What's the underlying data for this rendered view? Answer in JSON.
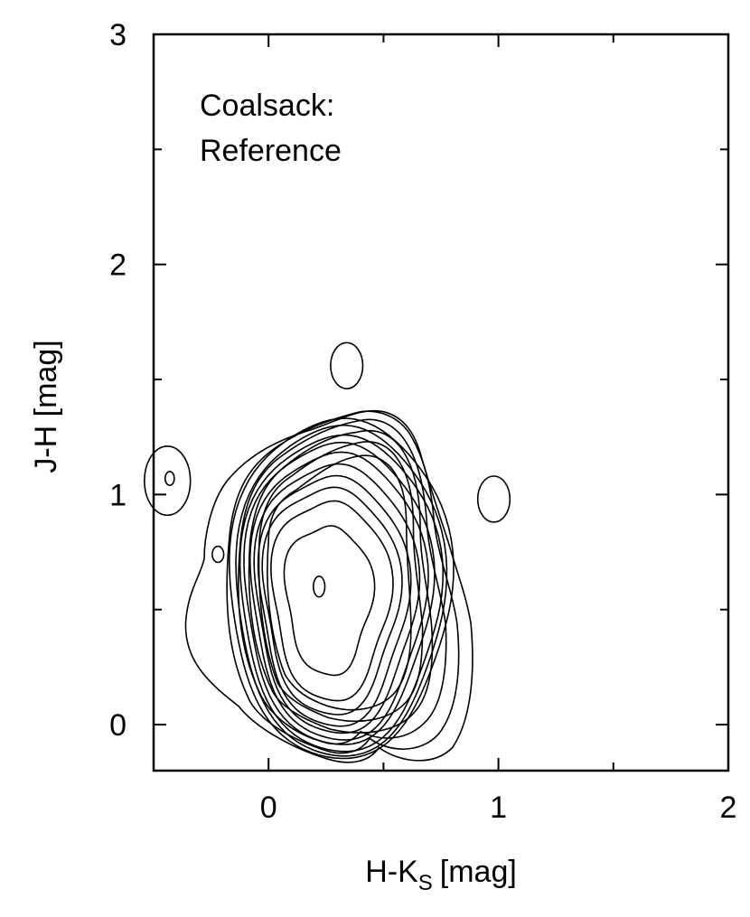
{
  "chart_data": {
    "type": "contour",
    "annotation": [
      "Coalsack:",
      "Reference"
    ],
    "xlabel": "H-K",
    "xlabel_subscript": "S",
    "xlabel_unit": "[mag]",
    "ylabel": "J-H [mag]",
    "xlim": [
      -0.5,
      2.0
    ],
    "ylim": [
      -0.2,
      3.0
    ],
    "x_ticks": [
      0,
      1,
      2
    ],
    "x_tick_labels": [
      "0",
      "1",
      "2"
    ],
    "x_minor_ticks": [
      -0.5,
      0.5,
      1.5
    ],
    "y_ticks": [
      0,
      1,
      2,
      3
    ],
    "y_tick_labels": [
      "0",
      "1",
      "2",
      "3"
    ],
    "y_minor_ticks": [
      0.5,
      1.5,
      2.5
    ],
    "grid": false,
    "line_color": "#000000",
    "peak": {
      "x": 0.22,
      "y": 0.6
    },
    "main_contours": [
      {
        "cx": 0.26,
        "cy": 0.55,
        "rx": 0.19,
        "ry": 0.33,
        "tilt": 18,
        "wobble": 0.14,
        "yshift": 0.0
      },
      {
        "cx": 0.27,
        "cy": 0.55,
        "rx": 0.26,
        "ry": 0.44,
        "tilt": 18,
        "wobble": 0.12,
        "yshift": 0.0
      },
      {
        "cx": 0.27,
        "cy": 0.55,
        "rx": 0.3,
        "ry": 0.5,
        "tilt": 18,
        "wobble": 0.11,
        "yshift": 0.0
      },
      {
        "cx": 0.28,
        "cy": 0.55,
        "rx": 0.33,
        "ry": 0.55,
        "tilt": 18,
        "wobble": 0.1,
        "yshift": 0.0
      },
      {
        "cx": 0.29,
        "cy": 0.56,
        "rx": 0.36,
        "ry": 0.59,
        "tilt": 18,
        "wobble": 0.09,
        "yshift": 0.0
      },
      {
        "cx": 0.3,
        "cy": 0.57,
        "rx": 0.39,
        "ry": 0.63,
        "tilt": 18,
        "wobble": 0.08,
        "yshift": 0.0
      },
      {
        "cx": 0.3,
        "cy": 0.58,
        "rx": 0.42,
        "ry": 0.66,
        "tilt": 18,
        "wobble": 0.07,
        "yshift": 0.0
      },
      {
        "cx": 0.31,
        "cy": 0.58,
        "rx": 0.45,
        "ry": 0.69,
        "tilt": 18,
        "wobble": 0.06,
        "yshift": 0.0
      },
      {
        "cx": 0.31,
        "cy": 0.59,
        "rx": 0.47,
        "ry": 0.72,
        "tilt": 18,
        "wobble": 0.05,
        "yshift": 0.0
      },
      {
        "cx": 0.31,
        "cy": 0.6,
        "rx": 0.5,
        "ry": 0.74,
        "tilt": 18,
        "wobble": 0.05,
        "yshift": 0.0
      }
    ],
    "outer_contours": [
      "M0.07,0.22 C0.02,0.35 -0.02,0.55 0.0,0.80 C0.0,0.92 0.05,0.98 0.12,1.02 C0.20,1.08 0.28,1.14 0.36,1.16 C0.43,1.18 0.48,1.17 0.53,1.12 C0.59,1.05 0.60,0.95 0.60,0.85 C0.60,0.70 0.62,0.55 0.62,0.42 C0.62,0.30 0.60,0.20 0.55,0.14 C0.48,0.06 0.36,0.05 0.26,0.08 C0.17,0.11 0.11,0.15 0.07,0.22 Z",
      "M0.04,0.18 C-0.02,0.33 -0.05,0.55 -0.04,0.80 C-0.03,0.95 0.02,1.03 0.10,1.08 C0.19,1.15 0.28,1.20 0.37,1.22 C0.44,1.24 0.50,1.23 0.55,1.17 C0.62,1.08 0.63,0.96 0.63,0.85 C0.63,0.70 0.66,0.56 0.67,0.42 C0.67,0.28 0.66,0.17 0.60,0.10 C0.52,0.01 0.38,0.00 0.26,0.03 C0.16,0.07 0.08,0.11 0.04,0.18 Z",
      "M0.02,0.14 C-0.06,0.30 -0.10,0.52 -0.08,0.80 C-0.06,0.97 -0.01,1.06 0.08,1.13 C0.18,1.21 0.28,1.26 0.38,1.27 C0.46,1.29 0.52,1.27 0.57,1.21 C0.64,1.12 0.66,0.98 0.66,0.85 C0.66,0.70 0.70,0.56 0.71,0.42 C0.72,0.26 0.70,0.13 0.64,0.06 C0.56,-0.04 0.40,-0.05 0.27,-0.02 C0.16,0.02 0.06,0.07 0.02,0.14 Z",
      "M-0.03,0.12 C-0.12,0.30 -0.15,0.52 -0.12,0.82 C-0.10,0.99 -0.04,1.10 0.06,1.17 C0.17,1.25 0.28,1.30 0.39,1.32 C0.47,1.34 0.54,1.31 0.59,1.24 C0.66,1.14 0.68,1.00 0.69,0.86 C0.70,0.72 0.75,0.58 0.77,0.44 C0.78,0.26 0.76,0.10 0.69,0.02 C0.60,-0.08 0.48,-0.07 0.40,-0.03 C0.36,-0.08 0.30,-0.10 0.22,-0.07 C0.12,-0.04 0.02,0.03 -0.03,0.12 Z",
      "M-0.08,0.10 C-0.17,0.28 -0.20,0.50 -0.17,0.82 C-0.15,1.02 -0.08,1.13 0.04,1.21 C0.16,1.29 0.28,1.33 0.40,1.36 C0.48,1.37 0.56,1.34 0.61,1.27 C0.68,1.16 0.71,1.02 0.72,0.88 C0.74,0.72 0.80,0.58 0.82,0.44 C0.84,0.24 0.82,0.06 0.74,-0.04 C0.66,-0.13 0.52,-0.12 0.44,-0.06 C0.40,-0.12 0.33,-0.14 0.24,-0.11 C0.12,-0.07 -0.02,0.00 -0.08,0.10 Z",
      "M-0.13,0.08 C-0.26,0.18 -0.37,0.28 -0.36,0.45 C-0.35,0.58 -0.30,0.64 -0.28,0.72 C-0.28,0.82 -0.25,0.97 -0.18,1.06 C-0.08,1.18 0.05,1.24 0.18,1.28 C0.30,1.32 0.40,1.38 0.50,1.36 C0.58,1.34 0.63,1.28 0.66,1.18 C0.70,1.04 0.74,0.92 0.78,0.80 C0.82,0.66 0.86,0.56 0.88,0.44 C0.90,0.22 0.88,0.02 0.80,-0.10 C0.72,-0.18 0.58,-0.17 0.48,-0.10 C0.44,-0.16 0.36,-0.18 0.26,-0.15 C0.12,-0.11 -0.05,-0.02 -0.13,0.08 Z"
    ],
    "isolated_contours": [
      {
        "cx": 0.34,
        "cy": 1.56,
        "rx": 0.07,
        "ry": 0.1
      },
      {
        "cx": 0.98,
        "cy": 0.98,
        "rx": 0.07,
        "ry": 0.1
      },
      {
        "cx": -0.44,
        "cy": 1.06,
        "rx": 0.1,
        "ry": 0.15
      },
      {
        "cx": -0.43,
        "cy": 1.07,
        "rx": 0.02,
        "ry": 0.03
      },
      {
        "cx": -0.22,
        "cy": 0.74,
        "rx": 0.025,
        "ry": 0.035
      },
      {
        "cx": 0.22,
        "cy": 0.6,
        "rx": 0.025,
        "ry": 0.045
      }
    ]
  }
}
